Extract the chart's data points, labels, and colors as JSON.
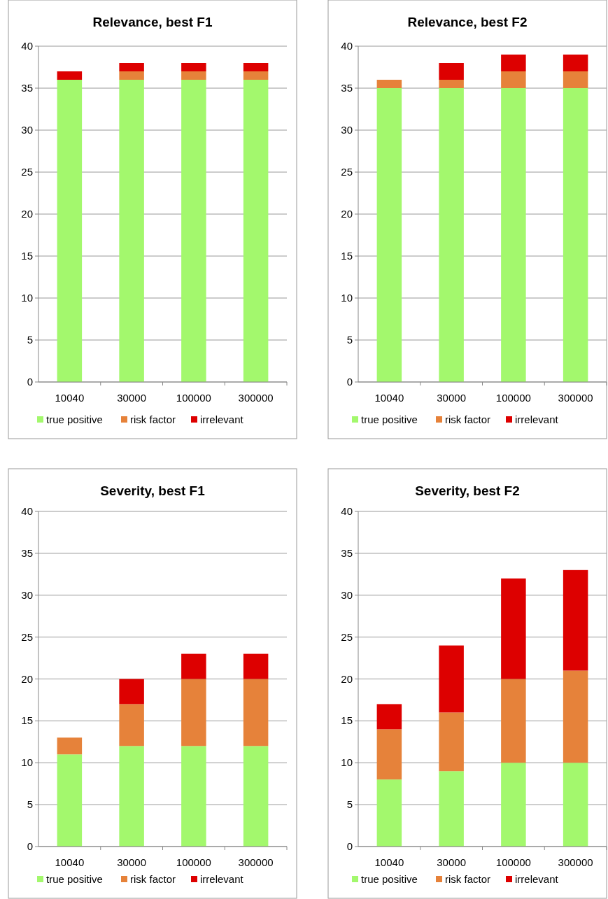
{
  "chart_data": [
    {
      "type": "bar",
      "title": "Relevance, best F1",
      "categories": [
        "10040",
        "30000",
        "100000",
        "300000"
      ],
      "stacked": true,
      "ylim": [
        0,
        40
      ],
      "yticks": [
        0,
        5,
        10,
        15,
        20,
        25,
        30,
        35,
        40
      ],
      "grid": "y",
      "legend": "bottom",
      "series": [
        {
          "name": "true positive",
          "color": "#a3f86d",
          "values": [
            36,
            36,
            36,
            36
          ]
        },
        {
          "name": "risk factor",
          "color": "#e6823a",
          "values": [
            0,
            1,
            1,
            1
          ]
        },
        {
          "name": "irrelevant",
          "color": "#dd0000",
          "values": [
            1,
            1,
            1,
            1
          ]
        }
      ]
    },
    {
      "type": "bar",
      "title": "Relevance, best F2",
      "categories": [
        "10040",
        "30000",
        "100000",
        "300000"
      ],
      "stacked": true,
      "ylim": [
        0,
        40
      ],
      "yticks": [
        0,
        5,
        10,
        15,
        20,
        25,
        30,
        35,
        40
      ],
      "grid": "y",
      "legend": "bottom",
      "series": [
        {
          "name": "true positive",
          "color": "#a3f86d",
          "values": [
            35,
            35,
            35,
            35
          ]
        },
        {
          "name": "risk factor",
          "color": "#e6823a",
          "values": [
            1,
            1,
            2,
            2
          ]
        },
        {
          "name": "irrelevant",
          "color": "#dd0000",
          "values": [
            0,
            2,
            2,
            2
          ]
        }
      ]
    },
    {
      "type": "bar",
      "title": "Severity, best F1",
      "categories": [
        "10040",
        "30000",
        "100000",
        "300000"
      ],
      "stacked": true,
      "ylim": [
        0,
        40
      ],
      "yticks": [
        0,
        5,
        10,
        15,
        20,
        25,
        30,
        35,
        40
      ],
      "grid": "y",
      "legend": "bottom",
      "series": [
        {
          "name": "true positive",
          "color": "#a3f86d",
          "values": [
            11,
            12,
            12,
            12
          ]
        },
        {
          "name": "risk factor",
          "color": "#e6823a",
          "values": [
            2,
            5,
            8,
            8
          ]
        },
        {
          "name": "irrelevant",
          "color": "#dd0000",
          "values": [
            0,
            3,
            3,
            3
          ]
        }
      ]
    },
    {
      "type": "bar",
      "title": "Severity, best F2",
      "categories": [
        "10040",
        "30000",
        "100000",
        "300000"
      ],
      "stacked": true,
      "ylim": [
        0,
        40
      ],
      "yticks": [
        0,
        5,
        10,
        15,
        20,
        25,
        30,
        35,
        40
      ],
      "grid": "y",
      "legend": "bottom",
      "series": [
        {
          "name": "true positive",
          "color": "#a3f86d",
          "values": [
            8,
            9,
            10,
            10
          ]
        },
        {
          "name": "risk factor",
          "color": "#e6823a",
          "values": [
            6,
            7,
            10,
            11
          ]
        },
        {
          "name": "irrelevant",
          "color": "#dd0000",
          "values": [
            3,
            8,
            12,
            12
          ]
        }
      ]
    }
  ]
}
